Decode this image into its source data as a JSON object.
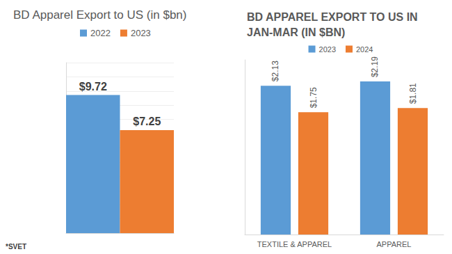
{
  "chart_data": [
    {
      "type": "bar",
      "title": "BD Apparel Export to US (in $bn)",
      "categories": [
        null
      ],
      "series": [
        {
          "name": "2022",
          "color": "#5B9BD5",
          "values": [
            9.72
          ],
          "value_labels": [
            "$9.72"
          ]
        },
        {
          "name": "2023",
          "color": "#ED7D31",
          "values": [
            7.25
          ],
          "value_labels": [
            "$7.25"
          ]
        }
      ],
      "ylim": [
        0,
        12
      ],
      "yticks": [
        0,
        1,
        2,
        3,
        4,
        5,
        6,
        7,
        8,
        9,
        10,
        11,
        12
      ],
      "grid": true,
      "data_labels": true,
      "tick_labels": false,
      "legend": "top",
      "annotations": [
        "*SVET"
      ]
    },
    {
      "type": "bar",
      "title": "BD APPAREL EXPORT TO US IN JAN-MAR (IN $BN)",
      "categories": [
        "TEXTILE & APPAREL",
        "APPAREL"
      ],
      "series": [
        {
          "name": "2023",
          "color": "#5B9BD5",
          "values": [
            2.13,
            2.19
          ],
          "value_labels": [
            "$2.13",
            "$2.19"
          ]
        },
        {
          "name": "2024",
          "color": "#ED7D31",
          "values": [
            1.75,
            1.81
          ],
          "value_labels": [
            "$1.75",
            "$1.81"
          ]
        }
      ],
      "ylim": [
        0,
        2.5
      ],
      "yticks": [
        0,
        0.5,
        1,
        1.5,
        2,
        2.5
      ],
      "grid": false,
      "data_labels": true,
      "tick_labels": "x",
      "legend": "top"
    }
  ]
}
